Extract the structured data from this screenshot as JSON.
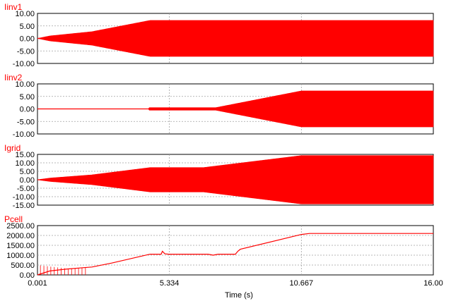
{
  "chart_data": {
    "type": "line",
    "xlabel": "Time  (s)",
    "xlim": [
      0.001,
      16.0
    ],
    "x_ticks": [
      "0.001",
      "5.334",
      "10.667",
      "16.00"
    ],
    "x_tick_values": [
      0.001,
      5.334,
      10.667,
      16.0
    ],
    "grid": true,
    "color": "#ff0000",
    "panels": [
      {
        "title": "Iinv1",
        "ylim": [
          -10,
          10
        ],
        "y_ticks": [
          "10.00",
          "5.00",
          "0.00",
          "-5.00",
          "-10.00"
        ],
        "y_tick_values": [
          10,
          5,
          0,
          -5,
          -10
        ],
        "mode": "band",
        "envelope": {
          "x": [
            0.001,
            0.5,
            2.2,
            4.55,
            16.0
          ],
          "amp": [
            0,
            1.0,
            2.7,
            7.2,
            7.2
          ]
        }
      },
      {
        "title": "Iinv2",
        "ylim": [
          -10,
          10
        ],
        "y_ticks": [
          "10.00",
          "5.00",
          "0.00",
          "-5.00",
          "-10.00"
        ],
        "y_tick_values": [
          10,
          5,
          0,
          -5,
          -10
        ],
        "mode": "band",
        "envelope": {
          "x": [
            0.001,
            4.5,
            4.51,
            6.7,
            7.2,
            10.667,
            16.0
          ],
          "amp": [
            0,
            0,
            0.5,
            0.5,
            0.5,
            7.2,
            7.2
          ]
        }
      },
      {
        "title": "Igrid",
        "ylim": [
          -15,
          15
        ],
        "y_ticks": [
          "15.00",
          "10.00",
          "5.00",
          "0.00",
          "-5.00",
          "-10.00",
          "-15.00"
        ],
        "y_tick_values": [
          15,
          10,
          5,
          0,
          -5,
          -10,
          -15
        ],
        "mode": "band",
        "envelope": {
          "x": [
            0.001,
            0.5,
            2.2,
            4.55,
            6.7,
            10.667,
            16.0
          ],
          "amp": [
            0,
            1.0,
            2.9,
            7.2,
            7.2,
            14.3,
            14.3
          ]
        }
      },
      {
        "title": "Pcell",
        "ylim": [
          0,
          2500
        ],
        "y_ticks": [
          "2500.00",
          "2000.00",
          "1500.00",
          "1000.00",
          "500.00",
          "0.00"
        ],
        "y_tick_values": [
          2500,
          2000,
          1500,
          1000,
          500,
          0
        ],
        "mode": "line",
        "series": {
          "x": [
            0.001,
            0.5,
            1.2,
            2.2,
            3.0,
            4.55,
            5.0,
            5.05,
            5.15,
            5.3,
            6.9,
            7.1,
            7.3,
            8.0,
            8.1,
            8.2,
            10.667,
            11.0,
            16.0
          ],
          "y": [
            0,
            200,
            300,
            400,
            600,
            1050,
            1050,
            1200,
            1070,
            1050,
            1050,
            1000,
            1050,
            1050,
            1200,
            1300,
            2050,
            2100,
            2100
          ]
        }
      }
    ]
  }
}
